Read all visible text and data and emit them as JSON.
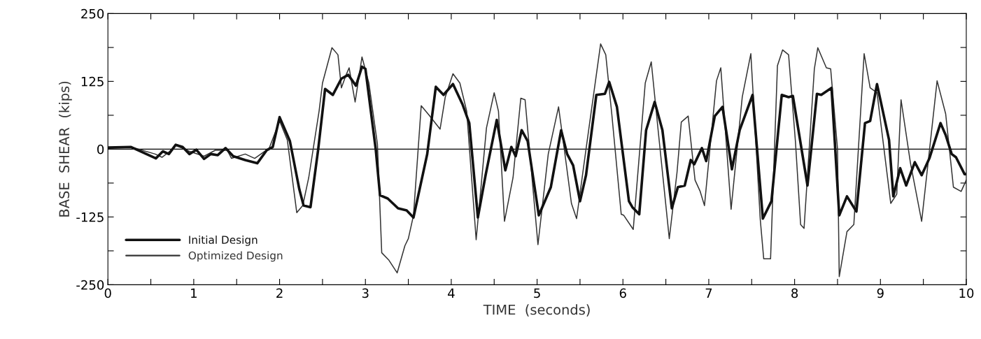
{
  "chart_data": {
    "type": "line",
    "xlabel": "TIME  (seconds)",
    "ylabel": "BASE  SHEAR  (kips)",
    "xlim": [
      0,
      10
    ],
    "ylim": [
      -250,
      250
    ],
    "xticks": [
      0,
      {
        "value": 0.5,
        "label": null
      },
      1,
      {
        "value": 1.5,
        "label": null
      },
      2,
      {
        "value": 2.5,
        "label": null
      },
      3,
      {
        "value": 3.5,
        "label": null
      },
      4,
      {
        "value": 4.5,
        "label": null
      },
      5,
      {
        "value": 5.5,
        "label": null
      },
      6,
      {
        "value": 6.5,
        "label": null
      },
      7,
      {
        "value": 7.5,
        "label": null
      },
      8,
      {
        "value": 8.5,
        "label": null
      },
      9,
      {
        "value": 9.5,
        "label": null
      },
      10
    ],
    "yticks": [
      -250,
      {
        "value": -187.5,
        "label": null
      },
      -125,
      {
        "value": -62.5,
        "label": null
      },
      0,
      {
        "value": 62.5,
        "label": null
      },
      125,
      {
        "value": 187.5,
        "label": null
      },
      250
    ],
    "grid": false,
    "legend": "bottom left",
    "marker": "none",
    "line_style": "solid",
    "ref_lines": [
      {
        "axis": "y",
        "value": 0,
        "color": "#000000"
      }
    ],
    "series": [
      {
        "name": "Initial Design",
        "color": "#111111",
        "x": [
          0,
          0.27,
          0.56,
          0.64,
          0.71,
          0.79,
          0.87,
          0.95,
          1.03,
          1.12,
          1.2,
          1.28,
          1.37,
          1.46,
          1.6,
          1.74,
          1.85,
          1.92,
          2.0,
          2.12,
          2.23,
          2.28,
          2.36,
          2.45,
          2.53,
          2.62,
          2.72,
          2.8,
          2.89,
          2.96,
          3.0,
          3.12,
          3.17,
          3.26,
          3.38,
          3.48,
          3.56,
          3.72,
          3.82,
          3.91,
          4.02,
          4.13,
          4.21,
          4.31,
          4.4,
          4.53,
          4.63,
          4.7,
          4.75,
          4.82,
          4.89,
          5.02,
          5.16,
          5.28,
          5.35,
          5.42,
          5.5,
          5.57,
          5.69,
          5.79,
          5.84,
          5.93,
          6.07,
          6.11,
          6.19,
          6.27,
          6.37,
          6.46,
          6.57,
          6.64,
          6.72,
          6.79,
          6.83,
          6.92,
          6.97,
          7.07,
          7.16,
          7.27,
          7.36,
          7.51,
          7.63,
          7.73,
          7.85,
          7.93,
          7.98,
          8.15,
          8.26,
          8.31,
          8.43,
          8.52,
          8.61,
          8.72,
          8.82,
          8.88,
          8.96,
          9.1,
          9.15,
          9.23,
          9.3,
          9.4,
          9.48,
          9.57,
          9.7,
          9.76,
          9.83,
          9.88,
          9.98,
          10.0
        ],
        "values": [
          3,
          4,
          -17,
          -4,
          -9,
          8,
          4,
          -9,
          -1,
          -18,
          -9,
          -11,
          2,
          -13,
          -20,
          -26,
          -2,
          4,
          59,
          15,
          -74,
          -104,
          -107,
          0,
          111,
          100,
          130,
          137,
          117,
          152,
          148,
          0,
          -85,
          -91,
          -109,
          -113,
          -126,
          -9,
          115,
          100,
          120,
          83,
          48,
          -126,
          -48,
          54,
          -39,
          4,
          -13,
          35,
          15,
          -122,
          -70,
          35,
          -9,
          -30,
          -96,
          -48,
          100,
          102,
          124,
          78,
          -96,
          -107,
          -120,
          35,
          87,
          35,
          -109,
          -70,
          -67,
          -20,
          -28,
          2,
          -22,
          61,
          78,
          -37,
          35,
          100,
          -128,
          -96,
          100,
          96,
          98,
          -67,
          102,
          100,
          113,
          -122,
          -87,
          -115,
          48,
          52,
          120,
          17,
          -87,
          -35,
          -67,
          -24,
          -48,
          -17,
          48,
          26,
          -9,
          -15,
          -46,
          -46
        ]
      },
      {
        "name": "Optimized Design",
        "color": "#333333",
        "x": [
          0,
          0.27,
          0.55,
          0.63,
          0.72,
          0.79,
          0.95,
          1.12,
          1.25,
          1.39,
          1.44,
          1.6,
          1.71,
          1.88,
          2.0,
          2.09,
          2.2,
          2.27,
          2.34,
          2.46,
          2.5,
          2.61,
          2.68,
          2.72,
          2.77,
          2.81,
          2.88,
          2.96,
          3.04,
          3.14,
          3.19,
          3.27,
          3.37,
          3.46,
          3.5,
          3.56,
          3.65,
          3.74,
          3.87,
          3.93,
          4.02,
          4.1,
          4.18,
          4.29,
          4.41,
          4.5,
          4.55,
          4.62,
          4.72,
          4.81,
          4.86,
          5.01,
          5.13,
          5.25,
          5.32,
          5.4,
          5.46,
          5.57,
          5.74,
          5.8,
          5.87,
          5.98,
          6.01,
          6.12,
          6.26,
          6.33,
          6.41,
          6.54,
          6.63,
          6.68,
          6.76,
          6.84,
          6.9,
          6.95,
          7.09,
          7.14,
          7.26,
          7.39,
          7.49,
          7.6,
          7.64,
          7.72,
          7.8,
          7.86,
          7.93,
          8.01,
          8.07,
          8.11,
          8.23,
          8.27,
          8.37,
          8.42,
          8.5,
          8.52,
          8.61,
          8.69,
          8.81,
          8.88,
          8.96,
          9.12,
          9.19,
          9.24,
          9.35,
          9.48,
          9.66,
          9.76,
          9.85,
          9.94,
          10.0
        ],
        "values": [
          3,
          4,
          -9,
          -15,
          -4,
          7,
          -4,
          -13,
          -2,
          -2,
          -17,
          -9,
          -17,
          2,
          52,
          17,
          -117,
          -104,
          -52,
          70,
          122,
          187,
          174,
          113,
          135,
          150,
          87,
          170,
          122,
          9,
          -191,
          -204,
          -228,
          -178,
          -165,
          -122,
          80,
          63,
          37,
          96,
          139,
          122,
          70,
          -167,
          39,
          104,
          70,
          -133,
          -52,
          94,
          91,
          -176,
          -9,
          78,
          -4,
          -100,
          -128,
          0,
          194,
          174,
          65,
          -120,
          -122,
          -148,
          122,
          161,
          35,
          -165,
          -43,
          50,
          61,
          -57,
          -78,
          -104,
          126,
          150,
          -111,
          96,
          176,
          -130,
          -202,
          -202,
          154,
          183,
          174,
          13,
          -139,
          -146,
          148,
          187,
          150,
          148,
          0,
          -235,
          -152,
          -139,
          176,
          113,
          104,
          -100,
          -83,
          91,
          -26,
          -133,
          126,
          65,
          -70,
          -78,
          -57
        ]
      }
    ]
  }
}
